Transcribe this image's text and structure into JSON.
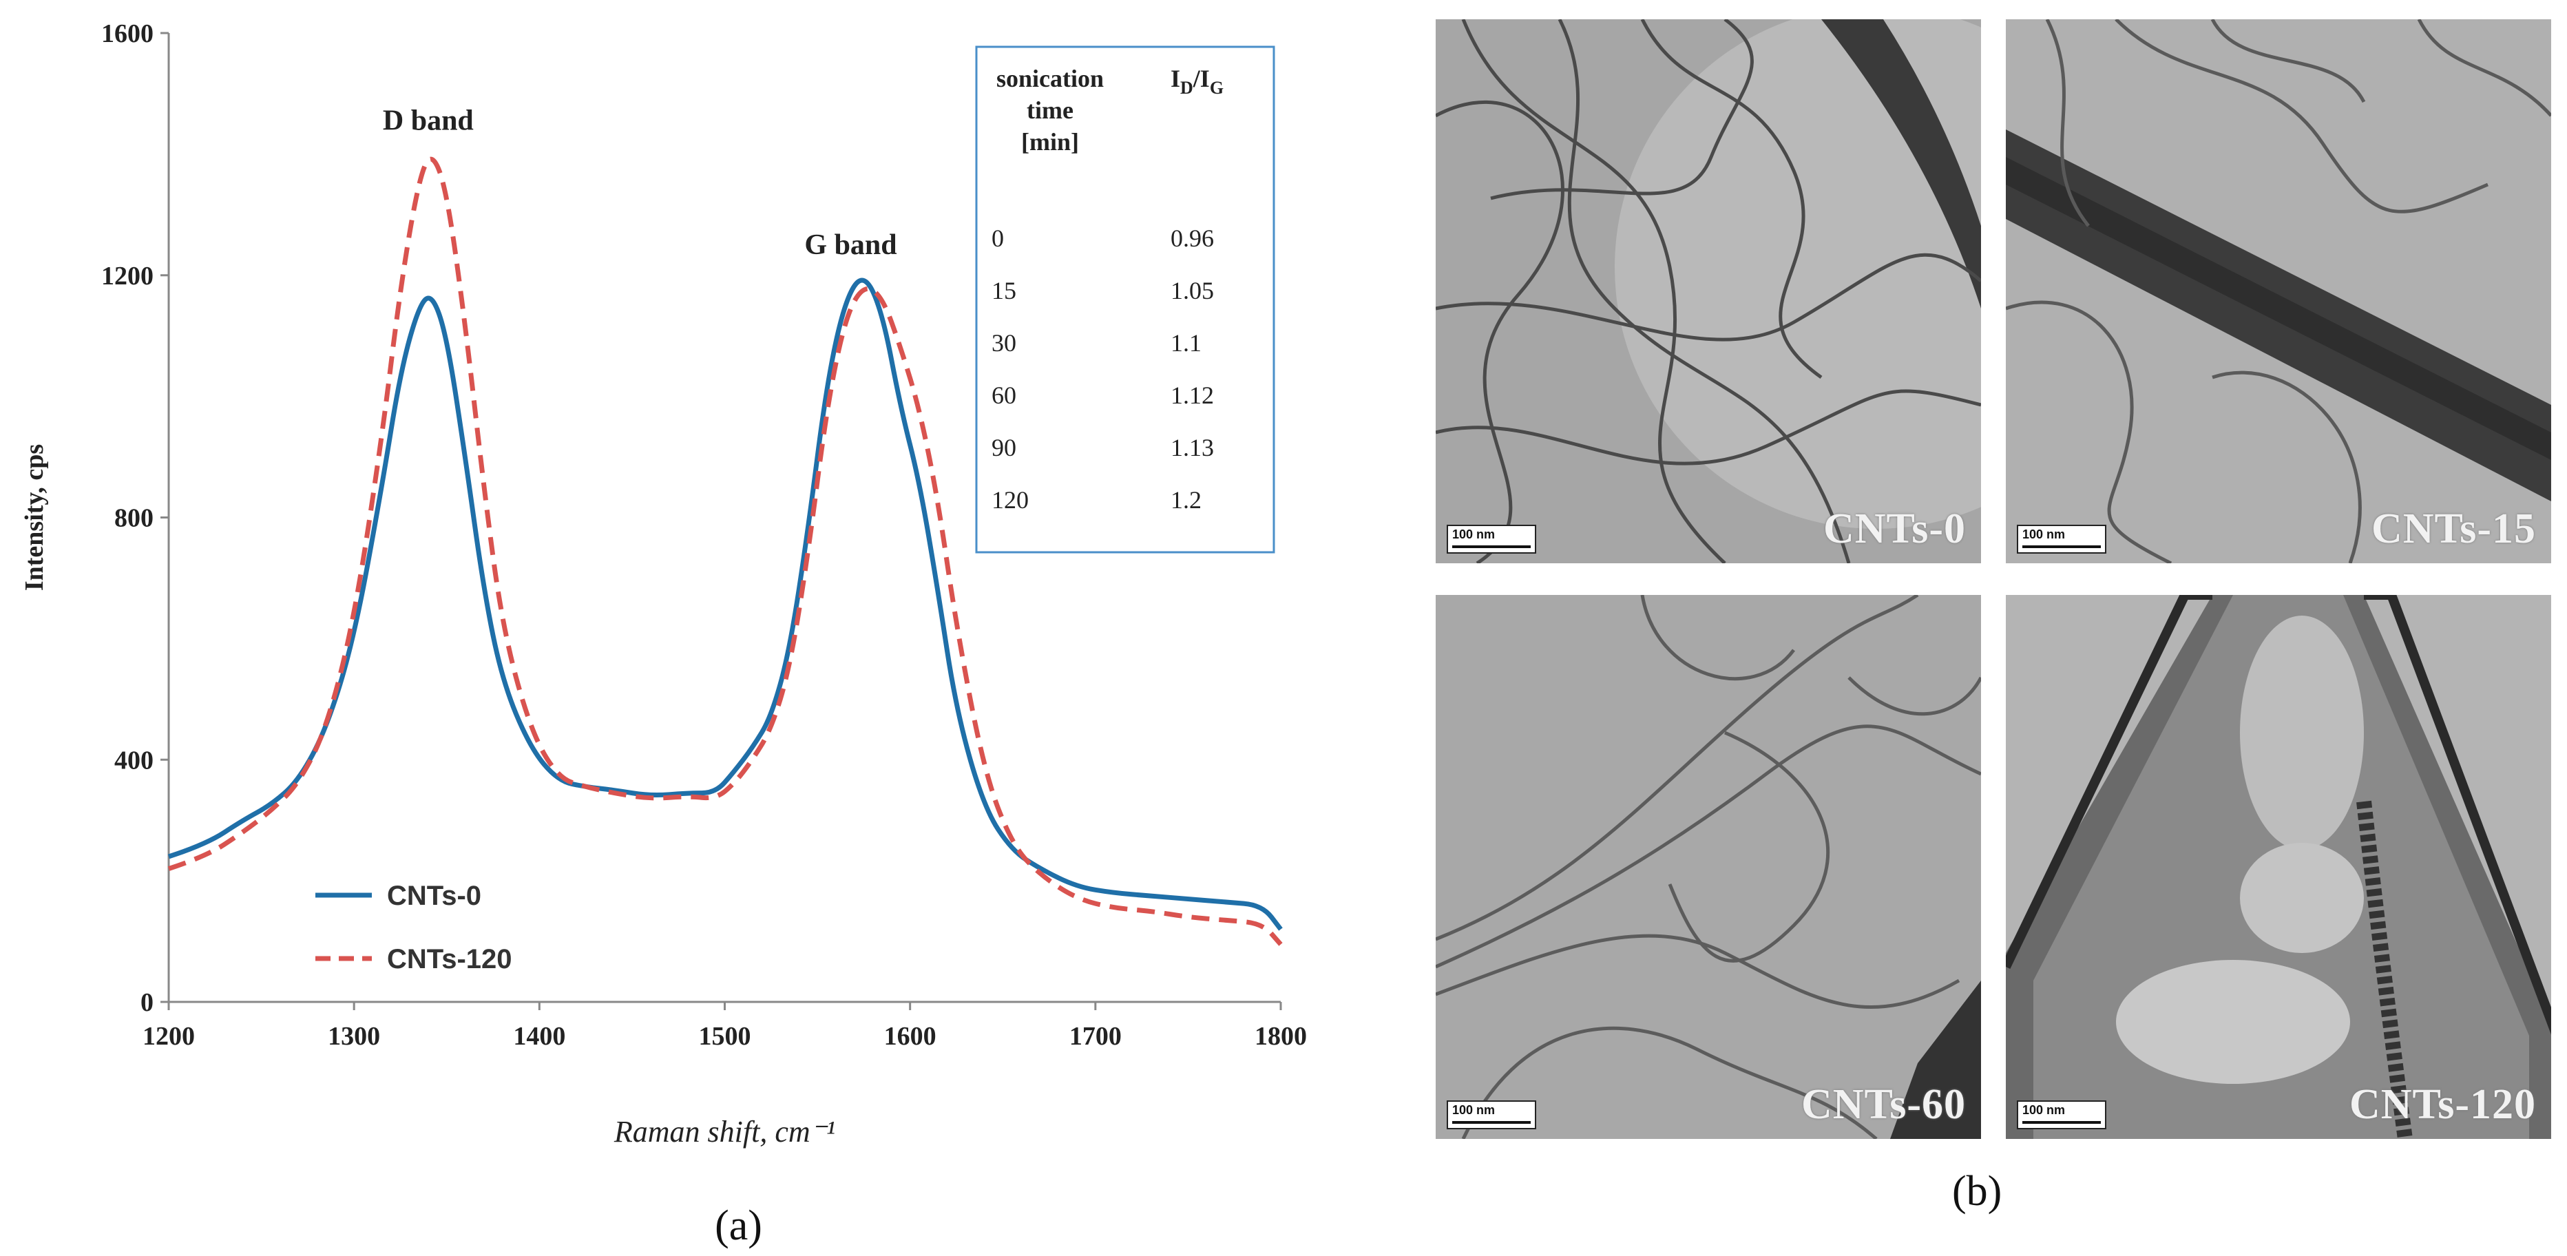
{
  "chart_data": {
    "type": "line",
    "panel_label": "(a)",
    "xlabel": "Raman shift, cm⁻¹",
    "ylabel": "Intensity,  cps",
    "xlim": [
      1200,
      1800
    ],
    "ylim": [
      0,
      1600
    ],
    "x_ticks": [
      "1200",
      "1300",
      "1400",
      "1500",
      "1600",
      "1700",
      "1800"
    ],
    "y_ticks": [
      "0",
      "400",
      "800",
      "1200",
      "1600"
    ],
    "annotations": [
      {
        "text": "D band",
        "x": 1340,
        "y": 1440
      },
      {
        "text": "G band",
        "x": 1568,
        "y": 1235
      }
    ],
    "legend": {
      "position": "bottom-left"
    },
    "series": [
      {
        "name": "CNTs-0",
        "color": "#1f6fa8",
        "style": "solid",
        "x": [
          1200,
          1220,
          1240,
          1255,
          1270,
          1285,
          1300,
          1315,
          1325,
          1335,
          1342,
          1350,
          1360,
          1370,
          1380,
          1395,
          1410,
          1425,
          1440,
          1460,
          1480,
          1495,
          1505,
          1515,
          1525,
          1535,
          1545,
          1555,
          1565,
          1575,
          1585,
          1595,
          1605,
          1615,
          1625,
          1640,
          1655,
          1670,
          1690,
          1710,
          1730,
          1750,
          1770,
          1790,
          1800
        ],
        "y": [
          240,
          260,
          300,
          325,
          365,
          450,
          600,
          850,
          1040,
          1150,
          1170,
          1100,
          900,
          680,
          530,
          420,
          365,
          355,
          350,
          340,
          345,
          345,
          380,
          420,
          470,
          580,
          780,
          1020,
          1160,
          1205,
          1140,
          980,
          860,
          680,
          480,
          320,
          250,
          220,
          190,
          180,
          175,
          170,
          165,
          160,
          120
        ]
      },
      {
        "name": "CNTs-120",
        "color": "#d9534f",
        "style": "dashed",
        "x": [
          1200,
          1220,
          1240,
          1255,
          1270,
          1285,
          1300,
          1315,
          1325,
          1335,
          1342,
          1350,
          1360,
          1370,
          1380,
          1395,
          1410,
          1425,
          1440,
          1460,
          1480,
          1495,
          1505,
          1515,
          1525,
          1535,
          1545,
          1555,
          1565,
          1575,
          1585,
          1595,
          1605,
          1615,
          1625,
          1640,
          1655,
          1670,
          1690,
          1710,
          1730,
          1750,
          1770,
          1790,
          1800
        ],
        "y": [
          220,
          240,
          280,
          315,
          360,
          450,
          630,
          930,
          1180,
          1360,
          1405,
          1340,
          1120,
          850,
          620,
          450,
          370,
          355,
          345,
          335,
          340,
          335,
          360,
          400,
          450,
          550,
          740,
          980,
          1130,
          1185,
          1165,
          1080,
          980,
          830,
          620,
          380,
          260,
          210,
          170,
          155,
          150,
          140,
          135,
          130,
          95
        ]
      }
    ],
    "inset_table": {
      "header_col1": [
        "sonication",
        "time",
        "[min]"
      ],
      "header_col2": "I_D/I_G",
      "rows": [
        {
          "time": "0",
          "ratio": "0.96"
        },
        {
          "time": "15",
          "ratio": "1.05"
        },
        {
          "time": "30",
          "ratio": "1.1"
        },
        {
          "time": "60",
          "ratio": "1.12"
        },
        {
          "time": "90",
          "ratio": "1.13"
        },
        {
          "time": "120",
          "ratio": "1.2"
        }
      ]
    }
  },
  "figure_b": {
    "panel_label": "(b)",
    "images": [
      {
        "caption": "CNTs-0",
        "scale": "100 nm"
      },
      {
        "caption": "CNTs-15",
        "scale": "100 nm"
      },
      {
        "caption": "CNTs-60",
        "scale": "100 nm"
      },
      {
        "caption": "CNTs-120",
        "scale": "100 nm"
      }
    ]
  }
}
